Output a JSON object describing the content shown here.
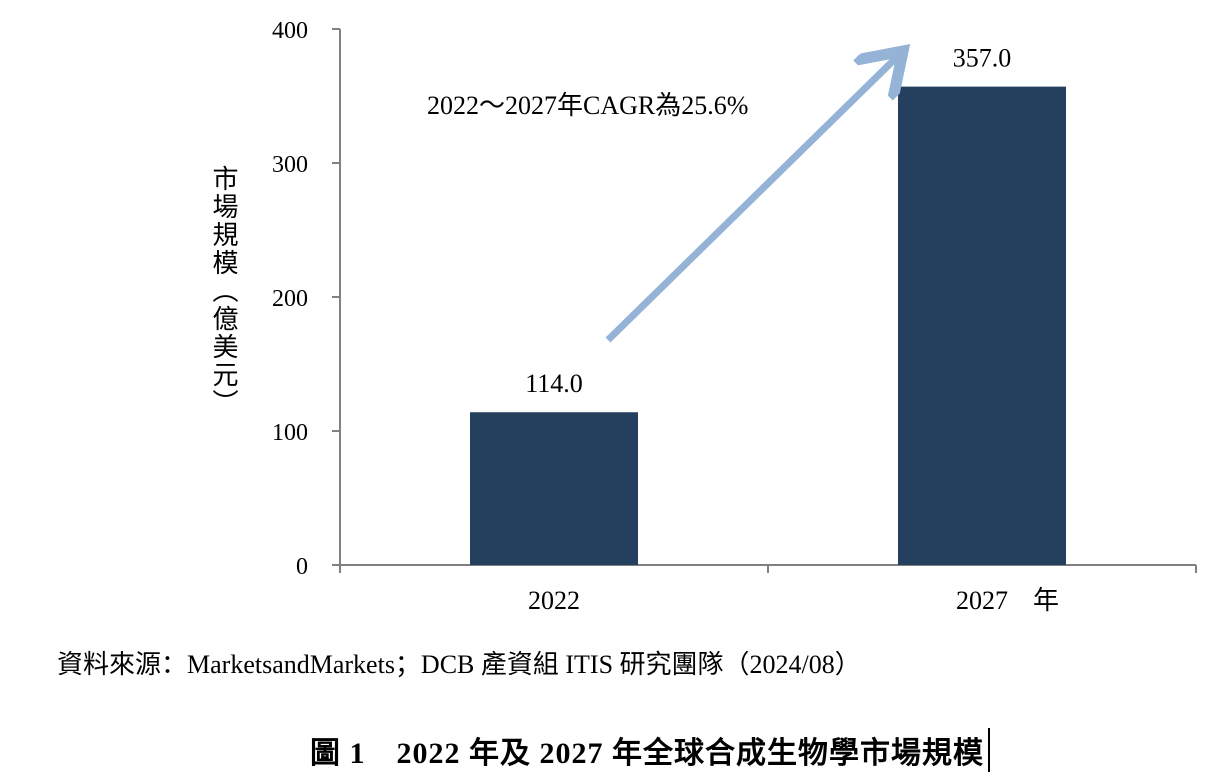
{
  "chart_data": {
    "type": "bar",
    "categories": [
      "2022",
      "2027"
    ],
    "values": [
      114.0,
      357.0
    ],
    "value_labels": [
      "114.0",
      "357.0"
    ],
    "ylim": [
      0,
      400
    ],
    "yticks": [
      0,
      100,
      200,
      300,
      400
    ],
    "ylabel": "市場規模（億美元）",
    "xlabel": "年",
    "bar_color": "#253f5e",
    "arrow_color": "#95b3d7",
    "annotation": "2022～2027年CAGR為25.6%",
    "grid": false
  },
  "source": "資料來源：MarketsandMarkets；DCB 產資組 ITIS 研究團隊（2024/08）",
  "caption": "圖 1　2022 年及 2027 年全球合成生物學市場規模"
}
